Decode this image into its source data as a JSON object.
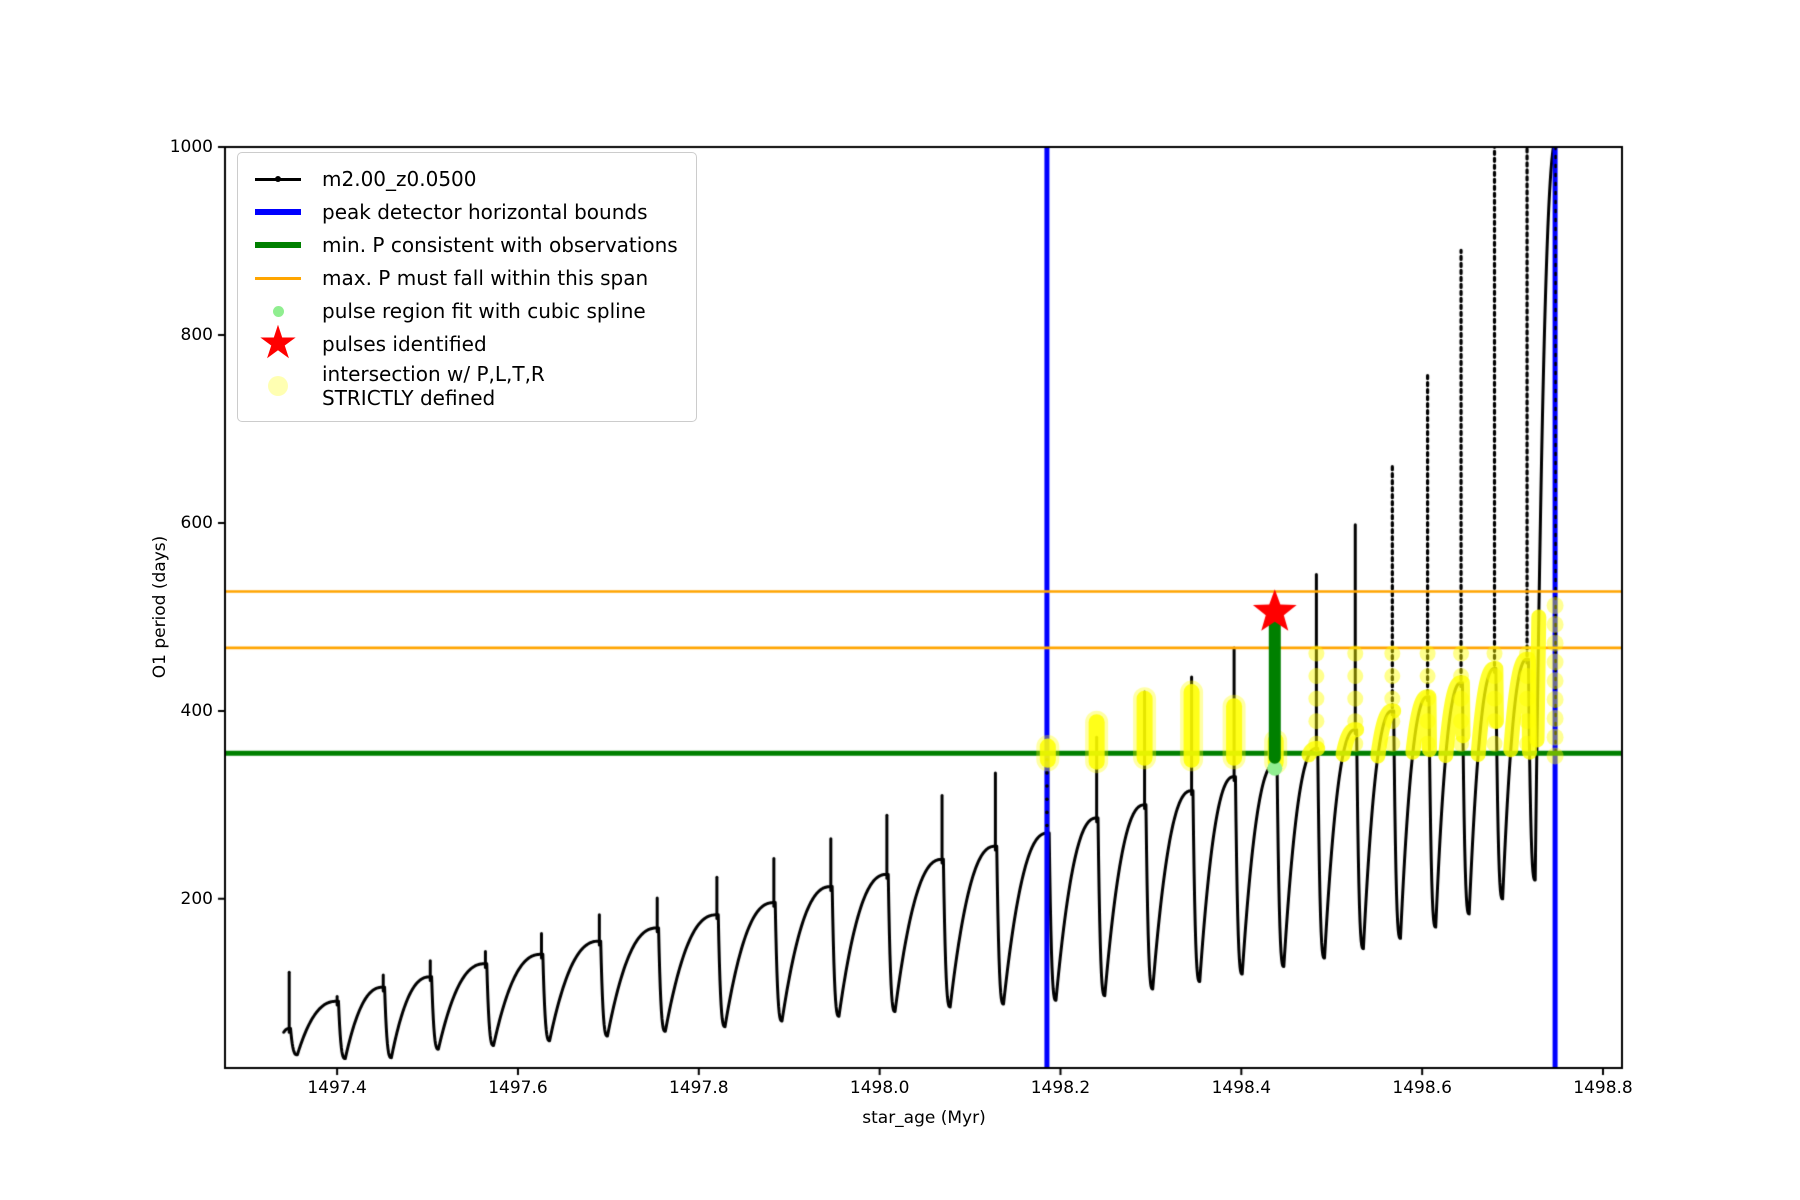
{
  "axes": {
    "xlabel": "star_age (Myr)",
    "ylabel": "O1 period (days)",
    "xlim": [
      1497.276,
      1498.821
    ],
    "ylim": [
      20,
      1000
    ],
    "xticks": [
      {
        "value": 1497.4,
        "label": "1497.4"
      },
      {
        "value": 1497.6,
        "label": "1497.6"
      },
      {
        "value": 1497.8,
        "label": "1497.8"
      },
      {
        "value": 1498.0,
        "label": "1498.0"
      },
      {
        "value": 1498.2,
        "label": "1498.2"
      },
      {
        "value": 1498.4,
        "label": "1498.4"
      },
      {
        "value": 1498.6,
        "label": "1498.6"
      },
      {
        "value": 1498.8,
        "label": "1498.8"
      }
    ],
    "yticks": [
      {
        "value": 200,
        "label": "200"
      },
      {
        "value": 400,
        "label": "400"
      },
      {
        "value": 600,
        "label": "600"
      },
      {
        "value": 800,
        "label": "800"
      },
      {
        "value": 1000,
        "label": "1000"
      }
    ]
  },
  "legend": {
    "items": [
      {
        "label": "m2.00_z0.0500",
        "swatch": "line-dot",
        "color": "#000000"
      },
      {
        "label": "peak detector horizontal bounds",
        "swatch": "thick-line",
        "color": "#0000ff"
      },
      {
        "label": "min. P consistent with observations",
        "swatch": "thick-line",
        "color": "#008000"
      },
      {
        "label": "max. P must fall within this span",
        "swatch": "line",
        "color": "#ffa500"
      },
      {
        "label": "pulse region fit with cubic spline",
        "swatch": "dot-small",
        "color": "#90ee90"
      },
      {
        "label": "pulses identified",
        "swatch": "star",
        "color": "#ff0000"
      },
      {
        "label": "intersection w/ P,L,T,R\nSTRICTLY defined",
        "swatch": "dot-large",
        "color": "rgba(255,255,0,0.30)"
      }
    ]
  },
  "chart_data": {
    "type": "line",
    "title": "",
    "xlabel": "star_age (Myr)",
    "ylabel": "O1 period (days)",
    "xlim": [
      1497.276,
      1498.821
    ],
    "ylim": [
      20,
      1000
    ],
    "grid": false,
    "legend_position": "upper left",
    "series_name": "m2.00_z0.0500",
    "series_color": "#000000",
    "cycle_fields": [
      "age_end_Myr",
      "period_min",
      "period_arc_top",
      "period_spike_top",
      "yellow_p_from",
      "yellow_p_to"
    ],
    "pulse_cycles": [
      [
        1497.347,
        58,
        62,
        122,
        null,
        null
      ],
      [
        1497.4,
        34,
        91,
        96,
        null,
        null
      ],
      [
        1497.451,
        30,
        106,
        119,
        null,
        null
      ],
      [
        1497.503,
        31,
        117,
        134,
        null,
        null
      ],
      [
        1497.564,
        40,
        131,
        144,
        null,
        null
      ],
      [
        1497.626,
        44,
        141,
        163,
        null,
        null
      ],
      [
        1497.69,
        49,
        155,
        183,
        null,
        null
      ],
      [
        1497.754,
        54,
        169,
        201,
        null,
        null
      ],
      [
        1497.82,
        59,
        183,
        223,
        null,
        null
      ],
      [
        1497.883,
        64,
        196,
        243,
        null,
        null
      ],
      [
        1497.946,
        70,
        213,
        264,
        null,
        null
      ],
      [
        1498.008,
        75,
        226,
        289,
        null,
        null
      ],
      [
        1498.069,
        80,
        242,
        310,
        null,
        null
      ],
      [
        1498.128,
        85,
        256,
        334,
        null,
        null
      ],
      [
        1498.186,
        88,
        270,
        356,
        348,
        362
      ],
      [
        1498.24,
        92,
        286,
        372,
        346,
        388
      ],
      [
        1498.293,
        97,
        300,
        420,
        350,
        413
      ],
      [
        1498.345,
        104,
        315,
        436,
        348,
        420
      ],
      [
        1498.392,
        112,
        330,
        467,
        350,
        405
      ],
      [
        1498.438,
        120,
        344,
        500,
        345,
        368
      ],
      [
        1498.483,
        128,
        360,
        545,
        null,
        null
      ],
      [
        1498.526,
        137,
        380,
        598,
        null,
        null
      ],
      [
        1498.567,
        147,
        400,
        664,
        null,
        null
      ],
      [
        1498.606,
        158,
        415,
        757,
        null,
        null
      ],
      [
        1498.643,
        170,
        430,
        890,
        null,
        null
      ],
      [
        1498.68,
        184,
        445,
        1005,
        null,
        null
      ],
      [
        1498.716,
        200,
        455,
        1060,
        null,
        null
      ],
      [
        1498.749,
        220,
        1010,
        null,
        null,
        null
      ]
    ],
    "peak_detector_bounds": {
      "color": "#0000ff",
      "x_values": [
        1498.185,
        1498.747
      ]
    },
    "min_P_line": {
      "color": "#008000",
      "y_value": 355
    },
    "max_P_span_lines": {
      "color": "#ffa500",
      "y_values": [
        527,
        467
      ]
    },
    "spline_segment": {
      "color": "#008000",
      "x": 1498.437,
      "p_from": 350,
      "p_to": 502
    },
    "spline_dot": {
      "color": "#90ee90",
      "x": 1498.437,
      "p": 339
    },
    "pulse_star": {
      "color": "#ff0000",
      "x": 1498.437,
      "p": 505
    },
    "yellow_band": {
      "color": "#ffff00",
      "t_from": 1498.45,
      "t_to": 1498.746,
      "p_lo": 352,
      "p_hi": 462,
      "t_late": 1498.7,
      "p_hi_late": 530
    },
    "yellow_on_blue_line": {
      "x": 1498.747,
      "p_from": 352,
      "p_to": 518
    }
  }
}
